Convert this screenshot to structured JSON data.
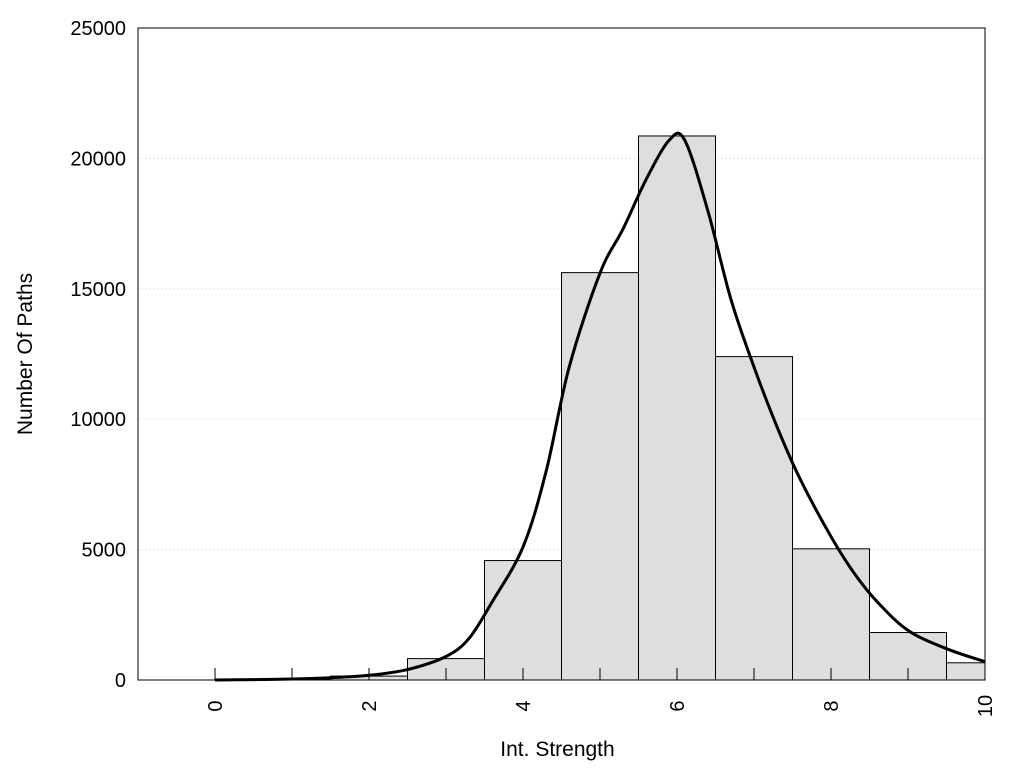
{
  "chart_data": {
    "type": "bar",
    "title": "",
    "xlabel": "Int. Strength",
    "ylabel": "Number Of Paths",
    "xlim": [
      -1,
      10
    ],
    "ylim": [
      0,
      25000
    ],
    "x_ticks": [
      0,
      2,
      4,
      6,
      8,
      10
    ],
    "y_ticks": [
      0,
      5000,
      10000,
      15000,
      20000,
      25000
    ],
    "grid": "horizontal dotted",
    "legend": "none",
    "bar_color": "#dedede",
    "bar_edge_color": "#000000",
    "curve_color": "#000000",
    "bars": {
      "x": [
        0,
        1,
        2,
        3,
        4,
        5,
        6,
        7,
        8,
        9,
        10
      ],
      "values": [
        0,
        40,
        150,
        820,
        4580,
        15620,
        20860,
        12400,
        5030,
        1820,
        660
      ]
    },
    "density_curve": {
      "x": [
        0,
        0.5,
        1,
        1.5,
        2,
        2.5,
        3,
        3.3,
        3.6,
        4,
        4.3,
        4.6,
        5,
        5.3,
        5.6,
        5.9,
        6.1,
        6.4,
        6.7,
        7,
        7.3,
        7.6,
        8,
        8.3,
        8.6,
        9,
        9.5,
        10
      ],
      "y": [
        0,
        15,
        40,
        90,
        180,
        400,
        900,
        1600,
        3000,
        5100,
        8000,
        12000,
        15600,
        17300,
        19200,
        20700,
        20700,
        18000,
        14600,
        12000,
        9700,
        7700,
        5500,
        4100,
        3000,
        1900,
        1200,
        700
      ]
    }
  }
}
